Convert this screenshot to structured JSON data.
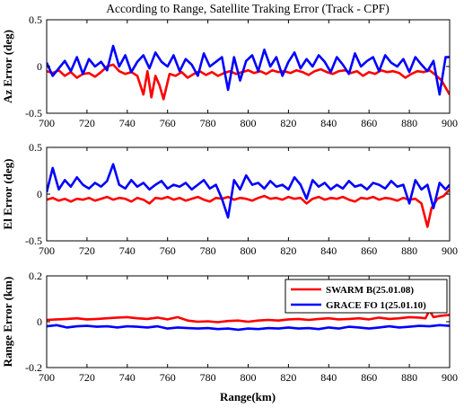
{
  "chart_data": [
    {
      "type": "line",
      "title": "According to Range, Satellite Traking Error (Track - CPF)",
      "ylabel": "Az Error (deg)",
      "xlabel": "",
      "xlim": [
        700,
        900
      ],
      "ylim": [
        -0.5,
        0.5
      ],
      "xticks": [
        "700",
        "720",
        "740",
        "760",
        "780",
        "800",
        "820",
        "840",
        "860",
        "880",
        "900"
      ],
      "yticks": [
        "-0.5",
        "0",
        "0.5"
      ],
      "series": [
        {
          "name": "SWARM B(25.01.08)",
          "color": "#ff0000",
          "x": [
            700,
            703,
            706,
            709,
            712,
            715,
            718,
            721,
            724,
            727,
            730,
            733,
            736,
            739,
            742,
            745,
            748,
            750,
            752,
            754,
            756,
            758,
            761,
            764,
            767,
            770,
            773,
            776,
            779,
            782,
            785,
            788,
            791,
            794,
            797,
            800,
            803,
            806,
            809,
            812,
            815,
            818,
            821,
            824,
            827,
            830,
            833,
            836,
            839,
            842,
            845,
            848,
            851,
            854,
            857,
            860,
            863,
            866,
            869,
            872,
            875,
            878,
            881,
            884,
            887,
            890,
            893,
            896,
            900
          ],
          "y": [
            -0.05,
            -0.07,
            -0.04,
            -0.1,
            -0.06,
            -0.12,
            -0.08,
            -0.07,
            -0.11,
            -0.06,
            0.0,
            0.02,
            -0.05,
            -0.08,
            -0.06,
            -0.1,
            -0.3,
            -0.05,
            -0.33,
            -0.1,
            -0.2,
            -0.35,
            -0.08,
            -0.1,
            -0.06,
            -0.12,
            -0.08,
            -0.05,
            -0.09,
            -0.06,
            -0.1,
            -0.07,
            -0.05,
            -0.08,
            -0.06,
            -0.04,
            -0.07,
            -0.05,
            -0.08,
            -0.04,
            -0.06,
            -0.05,
            -0.07,
            -0.04,
            -0.06,
            -0.09,
            -0.05,
            -0.03,
            -0.06,
            -0.08,
            -0.05,
            -0.04,
            -0.07,
            -0.05,
            -0.1,
            -0.06,
            -0.08,
            -0.04,
            -0.06,
            -0.05,
            -0.07,
            -0.12,
            -0.08,
            -0.05,
            -0.06,
            -0.04,
            -0.09,
            -0.15,
            -0.3
          ]
        },
        {
          "name": "GRACE FO 1(25.01.10)",
          "color": "#0000ff",
          "x": [
            700,
            703,
            706,
            709,
            712,
            715,
            718,
            721,
            724,
            727,
            730,
            733,
            736,
            739,
            742,
            745,
            748,
            751,
            754,
            757,
            760,
            763,
            766,
            769,
            772,
            775,
            778,
            781,
            784,
            787,
            790,
            793,
            796,
            799,
            802,
            805,
            808,
            811,
            814,
            817,
            820,
            823,
            826,
            829,
            832,
            835,
            838,
            841,
            844,
            847,
            850,
            853,
            856,
            859,
            862,
            865,
            868,
            871,
            874,
            877,
            880,
            883,
            886,
            889,
            892,
            895,
            898,
            900
          ],
          "y": [
            0.04,
            -0.1,
            -0.02,
            0.06,
            -0.05,
            0.1,
            -0.08,
            0.08,
            0.0,
            0.05,
            -0.04,
            0.22,
            0.0,
            0.12,
            -0.06,
            0.05,
            0.12,
            -0.02,
            0.15,
            0.05,
            0.0,
            0.12,
            -0.05,
            0.08,
            0.02,
            -0.1,
            0.14,
            0.0,
            0.05,
            0.1,
            -0.25,
            0.1,
            -0.15,
            0.06,
            0.12,
            -0.05,
            0.18,
            0.0,
            0.1,
            -0.1,
            0.05,
            0.15,
            -0.02,
            0.08,
            0.0,
            0.12,
            0.05,
            -0.06,
            0.1,
            0.02,
            -0.08,
            0.14,
            0.0,
            0.06,
            0.1,
            -0.05,
            0.12,
            0.04,
            0.0,
            0.08,
            -0.06,
            0.1,
            0.02,
            -0.05,
            0.06,
            -0.3,
            0.1,
            0.1
          ]
        }
      ]
    },
    {
      "type": "line",
      "title": "",
      "ylabel": "El Error (deg)",
      "xlabel": "",
      "xlim": [
        700,
        900
      ],
      "ylim": [
        -0.5,
        0.5
      ],
      "xticks": [
        "700",
        "720",
        "740",
        "760",
        "780",
        "800",
        "820",
        "840",
        "860",
        "880",
        "900"
      ],
      "yticks": [
        "-0.5",
        "0",
        "0.5"
      ],
      "series": [
        {
          "name": "SWARM B(25.01.08)",
          "color": "#ff0000",
          "x": [
            700,
            703,
            706,
            709,
            712,
            715,
            718,
            721,
            724,
            727,
            730,
            733,
            736,
            739,
            742,
            745,
            748,
            751,
            754,
            757,
            760,
            763,
            766,
            769,
            772,
            775,
            778,
            781,
            784,
            787,
            790,
            793,
            796,
            799,
            802,
            805,
            808,
            811,
            814,
            817,
            820,
            823,
            826,
            829,
            832,
            835,
            838,
            841,
            844,
            847,
            850,
            853,
            856,
            859,
            862,
            865,
            868,
            871,
            874,
            877,
            880,
            883,
            886,
            889,
            891,
            894,
            897,
            900
          ],
          "y": [
            -0.06,
            -0.04,
            -0.07,
            -0.05,
            -0.08,
            -0.05,
            -0.06,
            -0.04,
            -0.07,
            -0.05,
            -0.03,
            -0.06,
            -0.04,
            -0.05,
            -0.08,
            -0.04,
            -0.06,
            -0.1,
            -0.04,
            -0.05,
            -0.03,
            -0.06,
            -0.04,
            -0.07,
            -0.05,
            -0.03,
            -0.06,
            -0.08,
            -0.04,
            -0.05,
            -0.03,
            -0.06,
            -0.04,
            -0.05,
            -0.07,
            -0.04,
            -0.02,
            -0.05,
            -0.04,
            -0.06,
            -0.03,
            -0.05,
            -0.04,
            -0.1,
            -0.05,
            -0.03,
            -0.06,
            -0.04,
            -0.05,
            -0.03,
            -0.06,
            -0.08,
            -0.04,
            -0.05,
            -0.03,
            -0.06,
            -0.04,
            -0.05,
            -0.07,
            -0.04,
            -0.06,
            -0.05,
            -0.1,
            -0.35,
            -0.15,
            -0.05,
            -0.02,
            0.05
          ]
        },
        {
          "name": "GRACE FO 1(25.01.10)",
          "color": "#0000ff",
          "x": [
            700,
            703,
            706,
            709,
            712,
            715,
            718,
            721,
            724,
            727,
            730,
            733,
            736,
            739,
            742,
            745,
            748,
            751,
            754,
            757,
            760,
            763,
            766,
            769,
            772,
            775,
            778,
            781,
            784,
            787,
            790,
            793,
            796,
            799,
            802,
            805,
            808,
            811,
            814,
            817,
            820,
            823,
            826,
            829,
            832,
            835,
            838,
            841,
            844,
            847,
            850,
            853,
            856,
            859,
            862,
            865,
            868,
            871,
            874,
            877,
            880,
            883,
            886,
            889,
            892,
            895,
            898,
            900
          ],
          "y": [
            0.02,
            0.28,
            0.05,
            0.15,
            0.08,
            0.18,
            0.1,
            0.06,
            0.12,
            0.08,
            0.14,
            0.32,
            0.1,
            0.06,
            0.15,
            0.08,
            0.12,
            0.05,
            0.1,
            0.14,
            0.06,
            0.1,
            0.08,
            0.12,
            0.05,
            0.1,
            0.15,
            0.06,
            0.1,
            -0.05,
            -0.25,
            0.15,
            0.05,
            0.2,
            0.1,
            0.12,
            0.06,
            0.14,
            0.08,
            0.1,
            0.05,
            0.18,
            0.1,
            -0.05,
            0.15,
            0.08,
            0.12,
            0.05,
            0.1,
            0.06,
            0.14,
            0.08,
            0.1,
            0.05,
            0.12,
            0.1,
            0.06,
            0.14,
            0.08,
            0.1,
            -0.1,
            0.15,
            0.05,
            0.1,
            -0.15,
            0.12,
            0.05,
            0.1
          ]
        }
      ]
    },
    {
      "type": "line",
      "title": "",
      "ylabel": "Range Error (km)",
      "xlabel": "Range(km)",
      "xlim": [
        700,
        900
      ],
      "ylim": [
        -0.2,
        0.2
      ],
      "xticks": [
        "700",
        "720",
        "740",
        "760",
        "780",
        "800",
        "820",
        "840",
        "860",
        "880",
        "900"
      ],
      "yticks": [
        "-0.2",
        "0",
        "0.2"
      ],
      "legend": {
        "position": "top-right"
      },
      "series": [
        {
          "name": "SWARM B(25.01.08)",
          "color": "#ff0000",
          "x": [
            700,
            705,
            710,
            715,
            720,
            725,
            730,
            735,
            740,
            745,
            750,
            755,
            760,
            765,
            770,
            775,
            780,
            785,
            790,
            795,
            800,
            805,
            810,
            815,
            820,
            825,
            830,
            835,
            840,
            845,
            850,
            855,
            860,
            865,
            870,
            875,
            880,
            885,
            888,
            890,
            892,
            895,
            900
          ],
          "y": [
            0.008,
            0.01,
            0.012,
            0.015,
            0.01,
            0.012,
            0.015,
            0.018,
            0.02,
            0.015,
            0.012,
            0.018,
            0.01,
            0.02,
            0.005,
            0.0,
            0.002,
            -0.002,
            0.003,
            0.005,
            0.0,
            0.005,
            0.008,
            0.005,
            0.01,
            0.012,
            0.008,
            0.012,
            0.015,
            0.01,
            0.012,
            0.015,
            0.01,
            0.018,
            0.012,
            0.015,
            0.02,
            0.018,
            0.015,
            0.05,
            0.02,
            0.025,
            0.03
          ]
        },
        {
          "name": "GRACE FO 1(25.01.10)",
          "color": "#0000ff",
          "x": [
            700,
            705,
            710,
            715,
            720,
            725,
            730,
            735,
            740,
            745,
            750,
            755,
            760,
            765,
            770,
            775,
            780,
            785,
            790,
            795,
            800,
            805,
            810,
            815,
            820,
            825,
            830,
            835,
            840,
            845,
            850,
            855,
            860,
            865,
            870,
            875,
            880,
            885,
            890,
            895,
            900
          ],
          "y": [
            -0.02,
            -0.015,
            -0.025,
            -0.02,
            -0.018,
            -0.022,
            -0.02,
            -0.025,
            -0.02,
            -0.022,
            -0.025,
            -0.02,
            -0.03,
            -0.025,
            -0.028,
            -0.03,
            -0.028,
            -0.032,
            -0.03,
            -0.035,
            -0.03,
            -0.032,
            -0.028,
            -0.03,
            -0.025,
            -0.03,
            -0.028,
            -0.032,
            -0.025,
            -0.03,
            -0.022,
            -0.025,
            -0.03,
            -0.025,
            -0.02,
            -0.025,
            -0.022,
            -0.018,
            -0.02,
            -0.015,
            -0.018
          ]
        }
      ]
    }
  ]
}
